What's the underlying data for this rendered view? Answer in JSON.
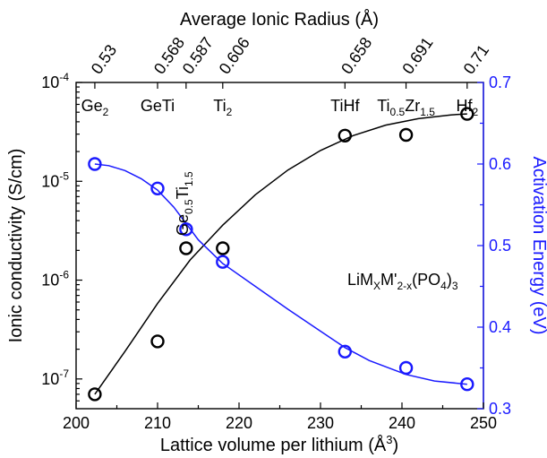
{
  "chart_data": {
    "type": "scatter",
    "title": "",
    "x_axis": {
      "label": "Lattice volume per lithium (Å³)",
      "label_parts": [
        "Lattice volume per lithium (Å",
        "3",
        ")"
      ],
      "range": [
        200,
        250
      ],
      "ticks": [
        200,
        210,
        220,
        230,
        240,
        250
      ]
    },
    "x_axis_top": {
      "label": "Average Ionic Radius (Å)",
      "ticks": [
        {
          "x": 202.3,
          "label": "0.53"
        },
        {
          "x": 210.0,
          "label": "0.568"
        },
        {
          "x": 213.5,
          "label": "0.587"
        },
        {
          "x": 218.0,
          "label": "0.606"
        },
        {
          "x": 233.0,
          "label": "0.658"
        },
        {
          "x": 240.5,
          "label": "0.691"
        },
        {
          "x": 248.0,
          "label": "0.71"
        }
      ]
    },
    "y_axis_left": {
      "label": "Ionic conductivity (S/cm)",
      "scale": "log",
      "range": [
        5e-08,
        0.0001
      ],
      "ticks": [
        {
          "value": 1e-07,
          "mantissa": "10",
          "exponent": "-7"
        },
        {
          "value": 1e-06,
          "mantissa": "10",
          "exponent": "-6"
        },
        {
          "value": 1e-05,
          "mantissa": "10",
          "exponent": "-5"
        },
        {
          "value": 0.0001,
          "mantissa": "10",
          "exponent": "-4"
        }
      ]
    },
    "y_axis_right": {
      "label": "Activation Energy (eV)",
      "range": [
        0.3,
        0.7
      ],
      "ticks": [
        0.3,
        0.4,
        0.5,
        0.6,
        0.7
      ]
    },
    "series": [
      {
        "axis": "left",
        "color": "#000000",
        "x": [
          202.3,
          210.0,
          213.5,
          218.0,
          233.0,
          240.5,
          248.0
        ],
        "y": [
          7e-08,
          2.4e-07,
          2.1e-06,
          2.1e-06,
          2.9e-05,
          2.95e-05,
          4.8e-05
        ],
        "fit_curve": [
          [
            202.3,
            7e-08
          ],
          [
            206,
            1.9e-07
          ],
          [
            210,
            5.8e-07
          ],
          [
            214,
            1.6e-06
          ],
          [
            218,
            3.6e-06
          ],
          [
            222,
            7.3e-06
          ],
          [
            226,
            1.3e-05
          ],
          [
            230,
            2.05e-05
          ],
          [
            234,
            2.9e-05
          ],
          [
            238,
            3.7e-05
          ],
          [
            242,
            4.3e-05
          ],
          [
            246,
            4.7e-05
          ],
          [
            248,
            4.8e-05
          ]
        ]
      },
      {
        "axis": "right",
        "color": "#1a1aff",
        "x": [
          202.3,
          210.0,
          213.5,
          218.0,
          233.0,
          240.5,
          248.0
        ],
        "y": [
          0.6,
          0.57,
          0.52,
          0.48,
          0.37,
          0.35,
          0.33
        ],
        "fit_curve": [
          [
            202.3,
            0.6
          ],
          [
            204,
            0.598
          ],
          [
            206,
            0.592
          ],
          [
            208,
            0.582
          ],
          [
            210,
            0.568
          ],
          [
            212,
            0.547
          ],
          [
            213.5,
            0.527
          ],
          [
            215,
            0.507
          ],
          [
            218,
            0.478
          ],
          [
            222,
            0.45
          ],
          [
            226,
            0.422
          ],
          [
            230,
            0.395
          ],
          [
            233,
            0.375
          ],
          [
            236,
            0.359
          ],
          [
            240.5,
            0.342
          ],
          [
            244,
            0.334
          ],
          [
            248,
            0.33
          ]
        ]
      }
    ],
    "annotations": [
      {
        "x": 202.3,
        "base": "Ge",
        "sub": "2",
        "after": ""
      },
      {
        "x": 210.0,
        "base": "GeTi",
        "sub": "",
        "after": ""
      },
      {
        "x": 218.0,
        "base": "Ti",
        "sub": "2",
        "after": ""
      },
      {
        "x": 233.0,
        "base": "TiHf",
        "sub": "",
        "after": ""
      },
      {
        "x": 240.5,
        "base": "Ti",
        "sub": "0.5",
        "after": "Zr",
        "sub2": "1.5"
      },
      {
        "x": 248.0,
        "base": "Hf",
        "sub": "2",
        "after": ""
      }
    ],
    "rotated_annotation": {
      "x": 213.5,
      "base": "Ge",
      "sub": "0.5",
      "after": "Ti",
      "sub2": "1.5"
    },
    "formula": {
      "p1": "LiM",
      "s1": "X",
      "p2": "M'",
      "s2": "2-x",
      "p3": "(PO",
      "s3": "4",
      "p4": ")",
      "s4": "3"
    }
  }
}
